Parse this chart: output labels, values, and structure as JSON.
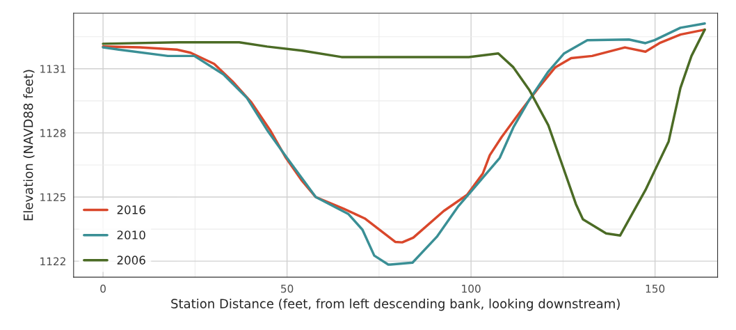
{
  "chart_data": {
    "type": "line",
    "xlabel": "Station Distance (feet, from left descending bank, looking downstream)",
    "ylabel": "Elevation (NAVD88 feet)",
    "xlim": [
      -8,
      167
    ],
    "ylim": [
      1121.25,
      1133.6
    ],
    "xticks": [
      0,
      50,
      100,
      150
    ],
    "yticks": [
      1122,
      1125,
      1128,
      1131
    ],
    "grid": true,
    "legend": "bottom left",
    "line_style": "solid",
    "marker": "none",
    "series": [
      {
        "name": "2016",
        "color": "#d9472b",
        "x": [
          0,
          10,
          20,
          23.8,
          30.2,
          35.2,
          40.3,
          45.4,
          49.7,
          54.1,
          57.8,
          65.4,
          71.1,
          79.4,
          81.3,
          84.3,
          92.6,
          98.9,
          103.2,
          105.1,
          108.3,
          113.4,
          118.3,
          122.9,
          127.2,
          132.9,
          141.8,
          147.4,
          151.2,
          156.9,
          163.5
        ],
        "values": [
          1132.04,
          1132.0,
          1131.9,
          1131.75,
          1131.23,
          1130.41,
          1129.43,
          1128.13,
          1126.83,
          1125.75,
          1125.0,
          1124.45,
          1124.0,
          1122.9,
          1122.88,
          1123.1,
          1124.35,
          1125.1,
          1126.1,
          1126.96,
          1127.8,
          1129.0,
          1130.1,
          1131.07,
          1131.5,
          1131.6,
          1132.0,
          1131.8,
          1132.2,
          1132.6,
          1132.83
        ]
      },
      {
        "name": "2010",
        "color": "#3a8f95",
        "x": [
          0,
          4.3,
          17.6,
          24.8,
          32.7,
          39,
          44.6,
          49.7,
          57.8,
          66.7,
          70.5,
          73.7,
          77.5,
          78.1,
          84.1,
          90.7,
          96.4,
          100.2,
          107.8,
          111.5,
          115.9,
          121,
          125.3,
          131.6,
          142.9,
          147.4,
          149.9,
          156.9,
          163.5
        ],
        "values": [
          1132.0,
          1131.9,
          1131.6,
          1131.6,
          1130.74,
          1129.66,
          1128.13,
          1126.9,
          1125.0,
          1124.2,
          1123.47,
          1122.26,
          1121.84,
          1121.84,
          1121.93,
          1123.14,
          1124.54,
          1125.3,
          1126.83,
          1128.26,
          1129.57,
          1130.87,
          1131.72,
          1132.34,
          1132.37,
          1132.2,
          1132.34,
          1132.92,
          1133.12
        ]
      },
      {
        "name": "2006",
        "color": "#4b6b25",
        "x": [
          0,
          20.8,
          37,
          44.6,
          54.1,
          64.8,
          99.4,
          107.4,
          111.5,
          115.9,
          121,
          124.8,
          128.5,
          130.4,
          136.7,
          140.5,
          147.4,
          153.7,
          156.9,
          159.9,
          163.5
        ],
        "values": [
          1132.17,
          1132.24,
          1132.24,
          1132.04,
          1131.85,
          1131.55,
          1131.55,
          1131.72,
          1131.07,
          1129.99,
          1128.36,
          1126.5,
          1124.67,
          1123.96,
          1123.3,
          1123.2,
          1125.33,
          1127.6,
          1130.1,
          1131.6,
          1132.83
        ]
      }
    ]
  }
}
